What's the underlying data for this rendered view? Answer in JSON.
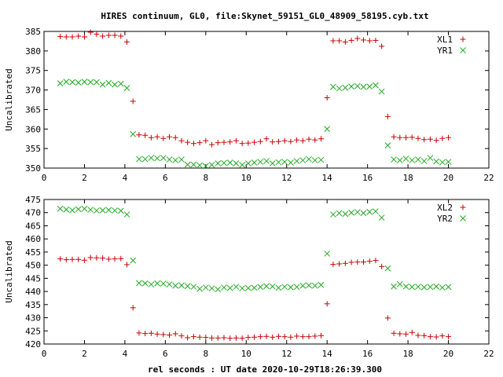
{
  "title": "HIRES continuum, GL0, file:Skynet_59151_GL0_48909_58195.cyb.txt",
  "xlabel": "rel seconds : UT date 2020-10-29T18:26:39.300",
  "colors": {
    "red": "#cc0000",
    "green": "#22aa22"
  },
  "chart_data": [
    {
      "type": "scatter",
      "ylabel": "Uncalibrated",
      "xlim": [
        0,
        22
      ],
      "ylim": [
        350,
        385
      ],
      "xticks": [
        0,
        2,
        4,
        6,
        8,
        10,
        12,
        14,
        16,
        18,
        20,
        22
      ],
      "yticks": [
        350,
        355,
        360,
        365,
        370,
        375,
        380,
        385
      ],
      "grid": false,
      "legend": "top-right",
      "series": [
        {
          "name": "XL1",
          "marker": "plus",
          "color": "#cc0000",
          "x": [
            0.8,
            1.1,
            1.4,
            1.7,
            2.0,
            2.3,
            2.6,
            2.9,
            3.2,
            3.5,
            3.8,
            4.1,
            4.4,
            4.7,
            5.0,
            5.3,
            5.6,
            5.9,
            6.2,
            6.5,
            6.8,
            7.1,
            7.4,
            7.7,
            8.0,
            8.3,
            8.6,
            8.9,
            9.2,
            9.5,
            9.8,
            10.1,
            10.4,
            10.7,
            11.0,
            11.3,
            11.6,
            11.9,
            12.2,
            12.5,
            12.8,
            13.1,
            13.4,
            13.7,
            14.0,
            14.3,
            14.6,
            14.9,
            15.2,
            15.5,
            15.8,
            16.1,
            16.4,
            16.7,
            17.0,
            17.3,
            17.6,
            17.9,
            18.2,
            18.5,
            18.8,
            19.1,
            19.4,
            19.7,
            20.0
          ],
          "y": [
            383.7,
            383.6,
            383.6,
            383.8,
            383.6,
            384.8,
            384.3,
            383.8,
            384.0,
            384.0,
            383.8,
            382.3,
            367.1,
            358.5,
            358.4,
            357.8,
            358.0,
            357.6,
            358.0,
            357.8,
            357.0,
            356.6,
            356.3,
            356.5,
            357.0,
            356.0,
            356.5,
            356.6,
            356.7,
            357.0,
            356.3,
            356.4,
            356.6,
            356.8,
            357.5,
            356.7,
            356.8,
            357.0,
            356.8,
            357.2,
            357.0,
            357.4,
            357.2,
            357.5,
            368.0,
            382.6,
            382.6,
            382.3,
            382.7,
            383.2,
            382.8,
            382.6,
            382.7,
            381.2,
            363.2,
            358.0,
            357.8,
            357.8,
            357.9,
            357.6,
            357.3,
            357.4,
            357.1,
            357.6,
            357.8
          ]
        },
        {
          "name": "YR1",
          "marker": "cross",
          "color": "#22aa22",
          "x": [
            0.8,
            1.1,
            1.4,
            1.7,
            2.0,
            2.3,
            2.6,
            2.9,
            3.2,
            3.5,
            3.8,
            4.1,
            4.4,
            4.7,
            5.0,
            5.3,
            5.6,
            5.9,
            6.2,
            6.5,
            6.8,
            7.1,
            7.4,
            7.7,
            8.0,
            8.3,
            8.6,
            8.9,
            9.2,
            9.5,
            9.8,
            10.1,
            10.4,
            10.7,
            11.0,
            11.3,
            11.6,
            11.9,
            12.2,
            12.5,
            12.8,
            13.1,
            13.4,
            13.7,
            14.0,
            14.3,
            14.6,
            14.9,
            15.2,
            15.5,
            15.8,
            16.1,
            16.4,
            16.7,
            17.0,
            17.3,
            17.6,
            17.9,
            18.2,
            18.5,
            18.8,
            19.1,
            19.4,
            19.7,
            20.0
          ],
          "y": [
            371.7,
            372.1,
            372.0,
            371.9,
            372.1,
            372.0,
            372.0,
            371.4,
            371.8,
            371.4,
            371.6,
            370.5,
            358.7,
            352.3,
            352.3,
            352.6,
            352.5,
            352.6,
            352.2,
            352.0,
            352.2,
            350.9,
            350.9,
            350.7,
            350.5,
            350.8,
            351.2,
            351.3,
            351.4,
            351.2,
            350.8,
            351.2,
            351.4,
            351.6,
            351.8,
            351.2,
            351.5,
            351.6,
            351.4,
            351.8,
            352.0,
            352.3,
            352.0,
            352.1,
            360.0,
            370.8,
            370.4,
            370.6,
            370.9,
            371.0,
            370.8,
            370.9,
            371.2,
            369.6,
            355.8,
            352.2,
            352.0,
            352.4,
            352.0,
            352.2,
            351.8,
            352.6,
            351.7,
            351.5,
            351.6
          ]
        }
      ]
    },
    {
      "type": "scatter",
      "ylabel": "Uncalibrated",
      "xlim": [
        0,
        22
      ],
      "ylim": [
        420,
        475
      ],
      "xticks": [
        0,
        2,
        4,
        6,
        8,
        10,
        12,
        14,
        16,
        18,
        20,
        22
      ],
      "yticks": [
        420,
        425,
        430,
        435,
        440,
        445,
        450,
        455,
        460,
        465,
        470,
        475
      ],
      "grid": false,
      "legend": "top-right",
      "series": [
        {
          "name": "XL2",
          "marker": "plus",
          "color": "#cc0000",
          "x": [
            0.8,
            1.1,
            1.4,
            1.7,
            2.0,
            2.3,
            2.6,
            2.9,
            3.2,
            3.5,
            3.8,
            4.1,
            4.4,
            4.7,
            5.0,
            5.3,
            5.6,
            5.9,
            6.2,
            6.5,
            6.8,
            7.1,
            7.4,
            7.7,
            8.0,
            8.3,
            8.6,
            8.9,
            9.2,
            9.5,
            9.8,
            10.1,
            10.4,
            10.7,
            11.0,
            11.3,
            11.6,
            11.9,
            12.2,
            12.5,
            12.8,
            13.1,
            13.4,
            13.7,
            14.0,
            14.3,
            14.6,
            14.9,
            15.2,
            15.5,
            15.8,
            16.1,
            16.4,
            16.7,
            17.0,
            17.3,
            17.6,
            17.9,
            18.2,
            18.5,
            18.8,
            19.1,
            19.4,
            19.7,
            20.0
          ],
          "y": [
            452.4,
            452.1,
            452.2,
            452.2,
            451.9,
            452.9,
            452.8,
            452.7,
            452.3,
            452.4,
            452.5,
            450.2,
            433.8,
            424.2,
            424.0,
            424.1,
            423.8,
            423.6,
            423.4,
            423.9,
            423.1,
            422.4,
            422.8,
            422.6,
            422.5,
            422.3,
            422.3,
            422.4,
            422.2,
            422.3,
            422.2,
            422.5,
            422.6,
            422.8,
            422.9,
            422.6,
            422.9,
            422.8,
            422.6,
            423.0,
            422.8,
            422.8,
            423.0,
            423.2,
            435.3,
            450.3,
            450.5,
            450.7,
            451.1,
            451.2,
            451.2,
            451.5,
            451.8,
            449.5,
            429.9,
            424.1,
            423.9,
            423.8,
            424.4,
            423.3,
            423.2,
            422.8,
            422.7,
            423.1,
            422.8
          ]
        },
        {
          "name": "YR2",
          "marker": "cross",
          "color": "#22aa22",
          "x": [
            0.8,
            1.1,
            1.4,
            1.7,
            2.0,
            2.3,
            2.6,
            2.9,
            3.2,
            3.5,
            3.8,
            4.1,
            4.4,
            4.7,
            5.0,
            5.3,
            5.6,
            5.9,
            6.2,
            6.5,
            6.8,
            7.1,
            7.4,
            7.7,
            8.0,
            8.3,
            8.6,
            8.9,
            9.2,
            9.5,
            9.8,
            10.1,
            10.4,
            10.7,
            11.0,
            11.3,
            11.6,
            11.9,
            12.2,
            12.5,
            12.8,
            13.1,
            13.4,
            13.7,
            14.0,
            14.3,
            14.6,
            14.9,
            15.2,
            15.5,
            15.8,
            16.1,
            16.4,
            16.7,
            17.0,
            17.3,
            17.6,
            17.9,
            18.2,
            18.5,
            18.8,
            19.1,
            19.4,
            19.7,
            20.0
          ],
          "y": [
            471.5,
            471.2,
            470.9,
            471.3,
            471.5,
            471.1,
            470.8,
            470.9,
            471.0,
            470.8,
            470.7,
            469.3,
            451.8,
            443.2,
            443.1,
            442.7,
            443.1,
            443.0,
            442.7,
            442.2,
            442.3,
            442.0,
            441.8,
            441.0,
            441.5,
            441.2,
            440.8,
            441.5,
            441.3,
            441.8,
            441.2,
            441.3,
            441.4,
            441.7,
            442.0,
            441.9,
            441.4,
            441.8,
            441.6,
            441.7,
            442.2,
            442.3,
            442.2,
            442.5,
            454.4,
            469.3,
            469.8,
            469.5,
            470.0,
            470.2,
            469.8,
            470.3,
            470.5,
            468.1,
            448.8,
            441.9,
            442.8,
            441.9,
            441.7,
            441.8,
            441.6,
            441.7,
            441.9,
            441.5,
            441.7
          ]
        }
      ]
    }
  ]
}
